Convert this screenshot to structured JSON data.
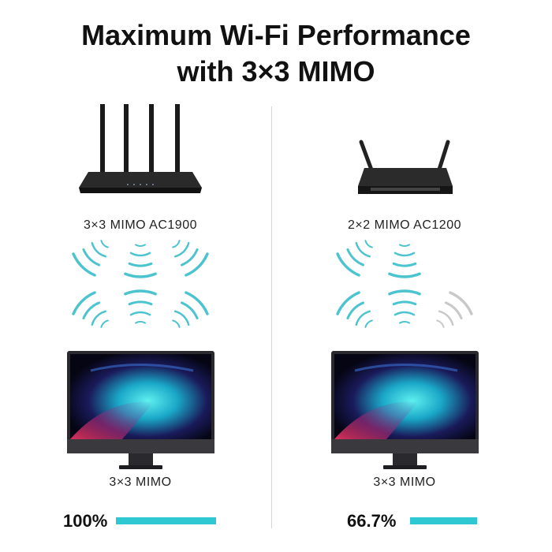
{
  "title": {
    "line1": "Maximum Wi-Fi Performance",
    "line2": "with 3×3 MIMO"
  },
  "colors": {
    "signal_active": "#4cc4d0",
    "signal_inactive": "#c8c8c8",
    "bar": "#2ec8d2",
    "text": "#111111"
  },
  "left": {
    "router_label": "3×3 MIMO AC1900",
    "device_label": "3×3 MIMO",
    "performance_label": "100%",
    "performance_value": 100,
    "router_antennas": 4,
    "signal_groups": {
      "top_left": "active",
      "top_center": "active",
      "top_right": "active",
      "bottom_left": "active",
      "bottom_center": "active",
      "bottom_right": "active"
    }
  },
  "right": {
    "router_label": "2×2 MIMO AC1200",
    "device_label": "3×3 MIMO",
    "performance_label": "66.7%",
    "performance_value": 66.7,
    "router_antennas": 2,
    "signal_groups": {
      "top_left": "active",
      "top_center": "active",
      "bottom_left": "active",
      "bottom_center": "active",
      "bottom_right": "inactive"
    }
  }
}
